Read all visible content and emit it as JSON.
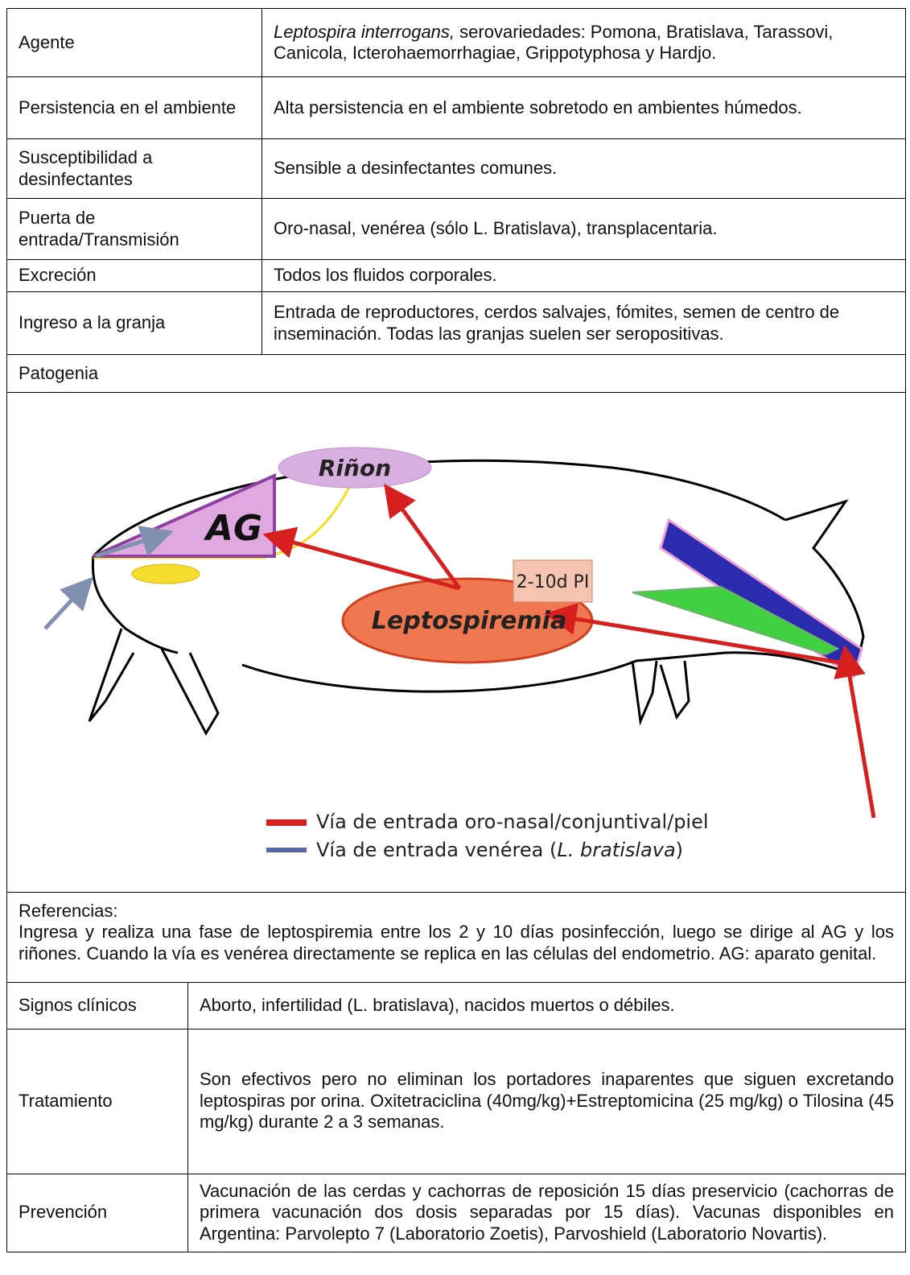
{
  "table_top": {
    "rows": [
      {
        "label": "Agente",
        "content_italic": "Leptospira interrogans,",
        "content": "serovariedades: Pomona, Bratislava, Tarassovi, Canicola, Icterohaemorrhagiae, Grippotyphosa y Hardjo."
      },
      {
        "label": "Persistencia en el ambiente",
        "content": "Alta persistencia en el ambiente sobretodo en ambientes húmedos."
      },
      {
        "label": "Susceptibilidad a desinfectantes",
        "content": "Sensible a desinfectantes comunes."
      },
      {
        "label": "Puerta de entrada/Transmisión",
        "content": "Oro-nasal, venérea (sólo L. Bratislava), transplacentaria."
      },
      {
        "label": "Excreción",
        "content": "Todos los fluidos corporales."
      },
      {
        "label": "Ingreso a la granja",
        "content": "Entrada de reproductores, cerdos salvajes, fómites, semen de centro de inseminación. Todas las granjas suelen ser seropositivas."
      }
    ]
  },
  "patogenia": {
    "title": "Patogenia",
    "diagram": {
      "kidney": "Riñon",
      "genital": "AG",
      "timing": "2-10d PI",
      "leptospiremia": "Leptospiremia",
      "legend": [
        {
          "text": "Vía de entrada oro-nasal/conjuntival/piel"
        },
        {
          "text": "Vía de entrada venérea (",
          "italic": "L. bratislava",
          "after": ")"
        }
      ]
    }
  },
  "references": {
    "title": "Referencias:",
    "text": "Ingresa y realiza una fase de leptospiremia entre los 2 y 10 días posinfección, luego se dirige al AG y los riñones. Cuando la vía es venérea directamente se replica en las células del endometrio. AG: aparato genital."
  },
  "table_bottom": {
    "rows": [
      {
        "label": "Signos clínicos",
        "content": "Aborto, infertilidad (L. bratislava), nacidos muertos o débiles."
      },
      {
        "label": "Tratamiento",
        "content": "Son efectivos pero no eliminan los portadores inaparentes que siguen excretando leptospiras por orina. Oxitetraciclina (40mg/kg)+Estreptomicina (25 mg/kg) o Tilosina (45 mg/kg) durante 2 a 3 semanas."
      },
      {
        "label": "Prevención",
        "content": "Vacunación de las cerdas y cachorras de reposición 15 días preservicio (cachorras de primera vacunación dos dosis separadas por 15 días). Vacunas disponibles en Argentina: Parvolepto 7 (Laboratorio Zoetis), Parvoshield (Laboratorio Novartis)."
      }
    ]
  }
}
